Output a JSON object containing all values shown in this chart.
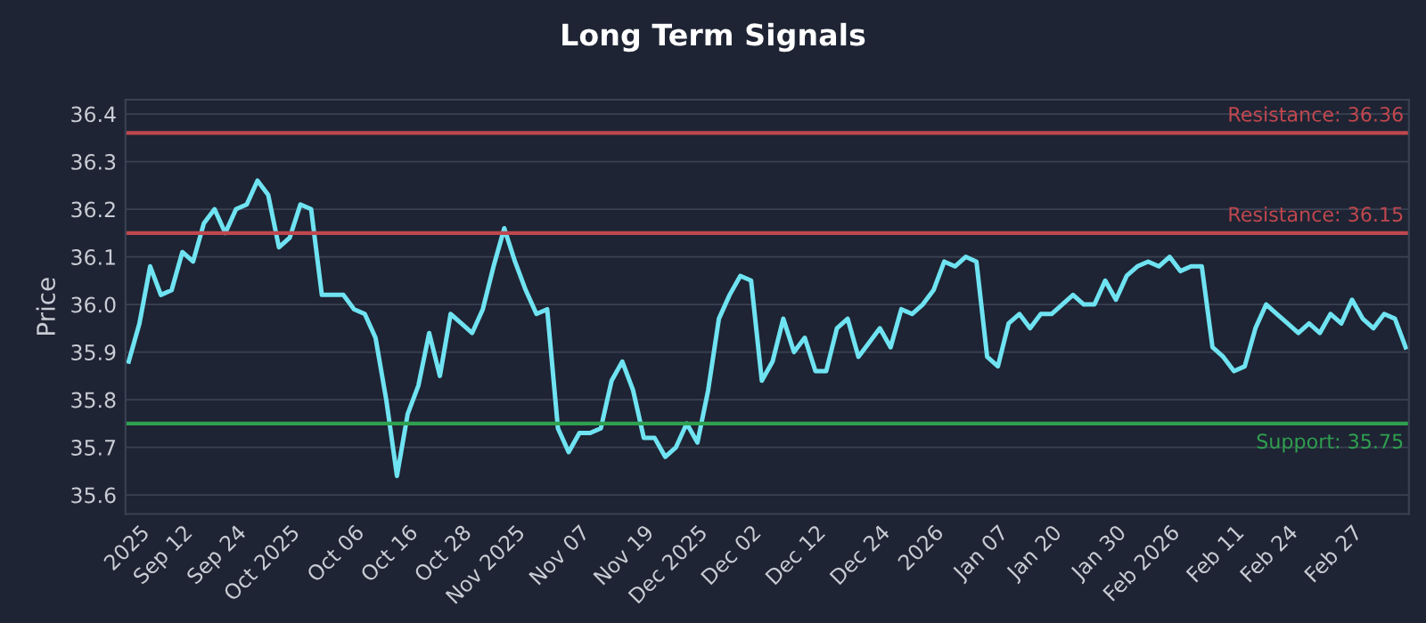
{
  "chart_data": {
    "type": "line",
    "title": "Long Term Signals",
    "ylabel": "Price",
    "categories": [
      null,
      "2025",
      null,
      null,
      null,
      "Sep 12",
      null,
      null,
      null,
      null,
      "Sep 24",
      null,
      null,
      null,
      null,
      "Oct 2025",
      null,
      null,
      null,
      null,
      null,
      "Oct 06",
      null,
      null,
      null,
      null,
      "Oct 16",
      null,
      null,
      null,
      null,
      "Oct 28",
      null,
      null,
      null,
      null,
      "Nov 2025",
      null,
      null,
      null,
      null,
      null,
      "Nov 07",
      null,
      null,
      null,
      null,
      null,
      "Nov 19",
      null,
      null,
      null,
      null,
      "Dec 2025",
      null,
      null,
      null,
      null,
      "Dec 02",
      null,
      null,
      null,
      null,
      null,
      "Dec 12",
      null,
      null,
      null,
      null,
      null,
      "Dec 24",
      null,
      null,
      null,
      null,
      "2026",
      null,
      null,
      null,
      null,
      null,
      "Jan 07",
      null,
      null,
      null,
      null,
      "Jan 20",
      null,
      null,
      null,
      null,
      null,
      "Jan 30",
      null,
      null,
      null,
      null,
      "Feb 2026",
      null,
      null,
      null,
      null,
      null,
      "Feb 11",
      null,
      null,
      null,
      null,
      "Feb 24",
      null,
      null,
      null,
      null,
      null,
      "Feb 27",
      null,
      null,
      null,
      null,
      null
    ],
    "series": [
      {
        "color": "#6fe3f2",
        "values": [
          35.88,
          35.96,
          36.08,
          36.02,
          36.03,
          36.11,
          36.09,
          36.17,
          36.2,
          36.15,
          36.2,
          36.21,
          36.26,
          36.23,
          36.12,
          36.14,
          36.21,
          36.2,
          36.02,
          36.02,
          36.02,
          35.99,
          35.98,
          35.93,
          35.8,
          35.64,
          35.77,
          35.83,
          35.94,
          35.85,
          35.98,
          35.96,
          35.94,
          35.99,
          36.08,
          36.16,
          36.09,
          36.03,
          35.98,
          35.99,
          35.74,
          35.69,
          35.73,
          35.73,
          35.74,
          35.84,
          35.88,
          35.82,
          35.72,
          35.72,
          35.68,
          35.7,
          35.75,
          35.71,
          35.82,
          35.97,
          36.02,
          36.06,
          36.05,
          35.84,
          35.88,
          35.97,
          35.9,
          35.93,
          35.86,
          35.86,
          35.95,
          35.97,
          35.89,
          35.92,
          35.95,
          35.91,
          35.99,
          35.98,
          36.0,
          36.03,
          36.09,
          36.08,
          36.1,
          36.09,
          35.89,
          35.87,
          35.96,
          35.98,
          35.95,
          35.98,
          35.98,
          36.0,
          36.02,
          36.0,
          36.0,
          36.05,
          36.01,
          36.06,
          36.08,
          36.09,
          36.08,
          36.1,
          36.07,
          36.08,
          36.08,
          35.91,
          35.89,
          35.86,
          35.87,
          35.95,
          36.0,
          35.98,
          35.96,
          35.94,
          35.96,
          35.94,
          35.98,
          35.96,
          36.01,
          35.97,
          35.95,
          35.98,
          35.97,
          35.91
        ]
      }
    ],
    "ylim": [
      35.56,
      36.43
    ],
    "yticks": [
      35.6,
      35.7,
      35.8,
      35.9,
      {
        "value": 36.0,
        "label": "36.0"
      },
      36.1,
      36.2,
      36.3,
      36.4
    ],
    "grid": "y",
    "ref_lines": [
      {
        "axis": "y",
        "value": 36.36,
        "label": "Resistance: 36.36",
        "color": "#c0474f"
      },
      {
        "axis": "y",
        "value": 36.15,
        "label": "Resistance: 36.15",
        "color": "#c0474f"
      },
      {
        "axis": "y",
        "value": 35.75,
        "label": "Support: 35.75",
        "color": "#2fa04f"
      }
    ]
  }
}
